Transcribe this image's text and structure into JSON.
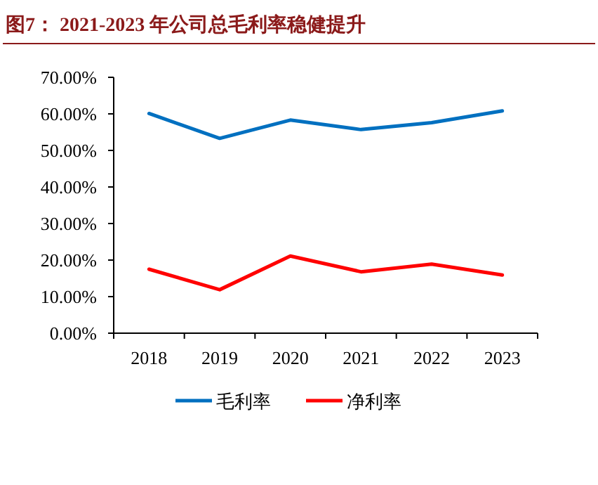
{
  "chart_data": {
    "type": "line",
    "title": "图7：  2021-2023 年公司总毛利率稳健提升",
    "categories": [
      "2018",
      "2019",
      "2020",
      "2021",
      "2022",
      "2023"
    ],
    "series": [
      {
        "name": "毛利率",
        "color": "#0070c0",
        "values": [
          60.1,
          53.3,
          58.3,
          55.7,
          57.6,
          60.8
        ]
      },
      {
        "name": "净利率",
        "color": "#ff0000",
        "values": [
          17.5,
          11.9,
          21.1,
          16.8,
          18.9,
          15.9
        ]
      }
    ],
    "ylim": [
      0,
      70
    ],
    "yticks": [
      {
        "value": 0,
        "label": "0.00%"
      },
      {
        "value": 10,
        "label": "10.00%"
      },
      {
        "value": 20,
        "label": "20.00%"
      },
      {
        "value": 30,
        "label": "30.00%"
      },
      {
        "value": 40,
        "label": "40.00%"
      },
      {
        "value": 50,
        "label": "50.00%"
      },
      {
        "value": 60,
        "label": "60.00%"
      },
      {
        "value": 70,
        "label": "70.00%"
      }
    ],
    "legend": "bottom"
  }
}
